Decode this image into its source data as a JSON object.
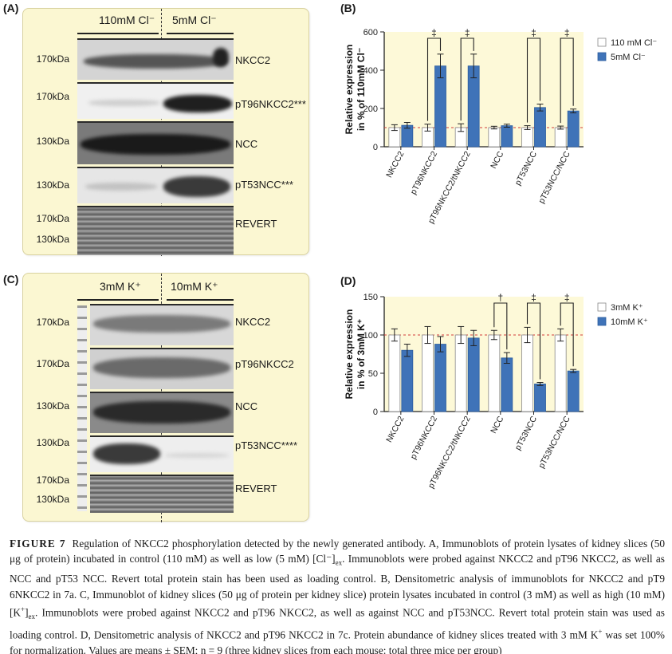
{
  "panels": {
    "a": {
      "letter": "(A)",
      "condition_left": "110mM Cl⁻",
      "condition_right": "5mM Cl⁻",
      "rows": [
        {
          "kda": "170kDa",
          "protein": "NKCC2"
        },
        {
          "kda": "170kDa",
          "protein": "pT96NKCC2***"
        },
        {
          "kda": "130kDa",
          "protein": "NCC"
        },
        {
          "kda": "130kDa",
          "protein": "pT53NCC***"
        },
        {
          "kda": "170kDa",
          "kda2": "130kDa",
          "protein": "REVERT"
        }
      ]
    },
    "b": {
      "letter": "(B)"
    },
    "c": {
      "letter": "(C)",
      "condition_left": "3mM K⁺",
      "condition_right": "10mM K⁺",
      "rows": [
        {
          "kda": "170kDa",
          "protein": "NKCC2"
        },
        {
          "kda": "170kDa",
          "protein": "pT96NKCC2"
        },
        {
          "kda": "130kDa",
          "protein": "NCC"
        },
        {
          "kda": "130kDa",
          "protein": "pT53NCC****"
        },
        {
          "kda": "170kDa",
          "kda2": "130kDa",
          "protein": "REVERT"
        }
      ]
    },
    "d": {
      "letter": "(D)"
    }
  },
  "chart_data": [
    {
      "panel": "B",
      "type": "bar",
      "categories": [
        "NKCC2",
        "pT96NKCC2",
        "pT96NKCC2/tNKCC2",
        "NCC",
        "pT53NCC",
        "pT53NCC/NCC"
      ],
      "series": [
        {
          "name": "110 mM Cl⁻",
          "values": [
            100,
            100,
            100,
            100,
            100,
            100
          ],
          "errors": [
            15,
            18,
            20,
            7,
            10,
            8
          ],
          "color": "#ffffff"
        },
        {
          "name": "5mM Cl⁻",
          "values": [
            112,
            422,
            422,
            110,
            205,
            187
          ],
          "errors": [
            15,
            62,
            62,
            8,
            18,
            10
          ],
          "color": "#3f73b8"
        }
      ],
      "ylim": [
        0,
        600
      ],
      "yticks": [
        0,
        200,
        400,
        600
      ],
      "ylabel_line1": "Relative expression",
      "ylabel_line2": "in % of 110mM Cl⁻",
      "reference_line": 100,
      "significance": [
        {
          "category_index": 1,
          "symbol": "‡"
        },
        {
          "category_index": 2,
          "symbol": "‡"
        },
        {
          "category_index": 4,
          "symbol": "‡"
        },
        {
          "category_index": 5,
          "symbol": "‡"
        }
      ],
      "legend_position": "top-right"
    },
    {
      "panel": "D",
      "type": "bar",
      "categories": [
        "NKCC2",
        "pT96NKCC2",
        "pT96NKCC2/tNKCC2",
        "NCC",
        "pT53NCC",
        "pT53NCC/NCC"
      ],
      "series": [
        {
          "name": "3mM K⁺",
          "values": [
            100,
            100,
            100,
            100,
            100,
            100
          ],
          "errors": [
            8,
            11,
            11,
            6,
            10,
            8
          ],
          "color": "#ffffff"
        },
        {
          "name": "10mM K⁺",
          "values": [
            80,
            88,
            96,
            70,
            36,
            53
          ],
          "errors": [
            8,
            10,
            10,
            7,
            2,
            2
          ],
          "color": "#3f73b8"
        }
      ],
      "ylim": [
        0,
        150
      ],
      "yticks": [
        0,
        50,
        100,
        150
      ],
      "ylabel_line1": "Relative expression",
      "ylabel_line2": "in % of  3mM K⁺",
      "reference_line": 100,
      "significance": [
        {
          "category_index": 3,
          "symbol": "†"
        },
        {
          "category_index": 4,
          "symbol": "‡"
        },
        {
          "category_index": 5,
          "symbol": "‡"
        }
      ],
      "legend_position": "top-right"
    }
  ],
  "caption": {
    "figure_label": "FIGURE 7",
    "seg1": "Regulation of NKCC2 phosphorylation detected by the newly generated antibody. A, Immunoblots of protein lysates of kidney slices (50 μg of protein) incubated in control (110 mM) as well as low (5 mM) [Cl⁻]",
    "sub1": "ex",
    "seg2": ". Immunoblots were probed against NKCC2 and pT96 NKCC2, as well as NCC and pT53 NCC. Revert total protein stain has been used as loading control. B, Densitometric analysis of immunoblots for NKCC2 and pT9 6NKCC2 in 7a. C, Immunoblot of kidney slices (50 μg of protein per kidney slice) protein lysates incubated in control (3 mM) as well as high (10 mM) [K",
    "sup2": "+",
    "seg2b": "]",
    "sub2": "ex",
    "seg3": ". Immunoblots were probed against NKCC2 and pT96 NKCC2, as well as against NCC and pT53NCC. Revert total protein stain was used as loading control. D, Densitometric analysis of NKCC2 and pT96 NKCC2 in 7c. Protein abundance of kidney slices treated with 3 mM K",
    "sup3": "+",
    "seg4": " was set 100% for normalization. Values are means ± SEM; n = 9 (three kidney slices from each mouse: total three mice per group)"
  }
}
